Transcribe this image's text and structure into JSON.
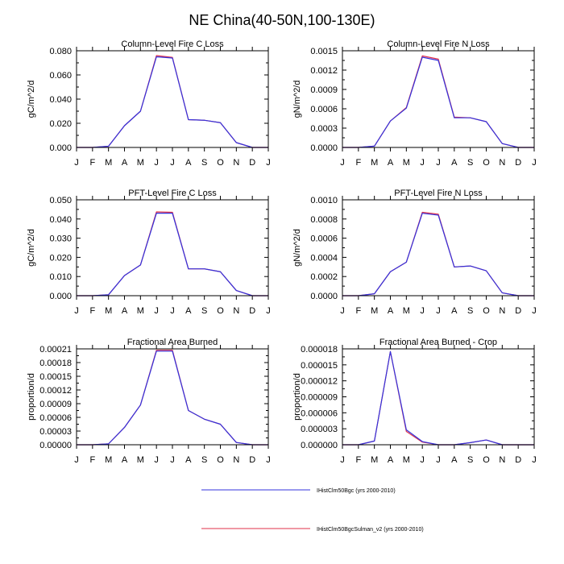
{
  "figure": {
    "title": "NE China(40-50N,100-130E)"
  },
  "legend": {
    "items": [
      {
        "label": "IHistClm50Bgc (yrs 2000-2010)",
        "color": "#3333dd"
      },
      {
        "label": "IHistClm50BgcSulman_v2 (yrs 2000-2010)",
        "color": "#e0304a"
      }
    ]
  },
  "chart_data": [
    {
      "type": "line",
      "title": "Column-Level Fire C Loss",
      "ylabel": "gC/m^2/d",
      "xlabel": "",
      "categories": [
        "J",
        "F",
        "M",
        "A",
        "M",
        "J",
        "J",
        "A",
        "S",
        "O",
        "N",
        "D",
        "J"
      ],
      "ylim": [
        0,
        0.08
      ],
      "yticks": [
        "0.000",
        "0.020",
        "0.040",
        "0.060",
        "0.080"
      ],
      "grid": false,
      "series": [
        {
          "name": "IHistClm50BgcSulman_v2 (yrs 2000-2010)",
          "color": "#e0304a",
          "values": [
            0.0,
            0.0,
            0.001,
            0.018,
            0.03,
            0.076,
            0.0745,
            0.023,
            0.0225,
            0.0205,
            0.004,
            0.0,
            0.0
          ]
        },
        {
          "name": "IHistClm50Bgc (yrs 2000-2010)",
          "color": "#3333dd",
          "values": [
            0.0,
            0.0,
            0.001,
            0.018,
            0.03,
            0.075,
            0.074,
            0.023,
            0.0225,
            0.0205,
            0.004,
            0.0,
            0.0
          ]
        }
      ]
    },
    {
      "type": "line",
      "title": "Column-Level Fire N Loss",
      "ylabel": "gN/m^2/d",
      "xlabel": "",
      "categories": [
        "J",
        "F",
        "M",
        "A",
        "M",
        "J",
        "J",
        "A",
        "S",
        "O",
        "N",
        "D",
        "J"
      ],
      "ylim": [
        0,
        0.0015
      ],
      "yticks": [
        "0.0000",
        "0.0003",
        "0.0006",
        "0.0009",
        "0.0012",
        "0.0015"
      ],
      "grid": false,
      "series": [
        {
          "name": "IHistClm50BgcSulman_v2 (yrs 2000-2010)",
          "color": "#e0304a",
          "values": [
            0.0,
            0.0,
            2e-05,
            0.00041,
            0.00062,
            0.00142,
            0.00137,
            0.00047,
            0.00046,
            0.0004,
            6e-05,
            0.0,
            0.0
          ]
        },
        {
          "name": "IHistClm50Bgc (yrs 2000-2010)",
          "color": "#3333dd",
          "values": [
            0.0,
            0.0,
            2e-05,
            0.00041,
            0.00061,
            0.0014,
            0.00135,
            0.00046,
            0.00046,
            0.0004,
            6e-05,
            0.0,
            0.0
          ]
        }
      ]
    },
    {
      "type": "line",
      "title": "PFT-Level Fire C Loss",
      "ylabel": "gC/m^2/d",
      "xlabel": "",
      "categories": [
        "J",
        "F",
        "M",
        "A",
        "M",
        "J",
        "J",
        "A",
        "S",
        "O",
        "N",
        "D",
        "J"
      ],
      "ylim": [
        0,
        0.05
      ],
      "yticks": [
        "0.000",
        "0.010",
        "0.020",
        "0.030",
        "0.040",
        "0.050"
      ],
      "grid": false,
      "series": [
        {
          "name": "IHistClm50BgcSulman_v2 (yrs 2000-2010)",
          "color": "#e0304a",
          "values": [
            0.0,
            0.0,
            0.0005,
            0.0105,
            0.016,
            0.0437,
            0.0435,
            0.014,
            0.014,
            0.0125,
            0.0027,
            0.0,
            0.0
          ]
        },
        {
          "name": "IHistClm50Bgc (yrs 2000-2010)",
          "color": "#3333dd",
          "values": [
            0.0,
            0.0,
            0.0005,
            0.0105,
            0.016,
            0.043,
            0.043,
            0.014,
            0.014,
            0.0125,
            0.0027,
            0.0,
            0.0
          ]
        }
      ]
    },
    {
      "type": "line",
      "title": "PFT-Level Fire N Loss",
      "ylabel": "gN/m^2/d",
      "xlabel": "",
      "categories": [
        "J",
        "F",
        "M",
        "A",
        "M",
        "J",
        "J",
        "A",
        "S",
        "O",
        "N",
        "D",
        "J"
      ],
      "ylim": [
        0,
        0.001
      ],
      "yticks": [
        "0.0000",
        "0.0002",
        "0.0004",
        "0.0006",
        "0.0008",
        "0.0010"
      ],
      "grid": false,
      "series": [
        {
          "name": "IHistClm50BgcSulman_v2 (yrs 2000-2010)",
          "color": "#e0304a",
          "values": [
            0.0,
            0.0,
            2e-05,
            0.00025,
            0.00035,
            0.00087,
            0.00085,
            0.0003,
            0.00031,
            0.00026,
            3e-05,
            0.0,
            0.0
          ]
        },
        {
          "name": "IHistClm50Bgc (yrs 2000-2010)",
          "color": "#3333dd",
          "values": [
            0.0,
            0.0,
            2e-05,
            0.00025,
            0.00035,
            0.00086,
            0.00084,
            0.0003,
            0.00031,
            0.00026,
            3e-05,
            0.0,
            0.0
          ]
        }
      ]
    },
    {
      "type": "line",
      "title": "Fractional Area Burned",
      "ylabel": "proportion/d",
      "xlabel": "",
      "categories": [
        "J",
        "F",
        "M",
        "A",
        "M",
        "J",
        "J",
        "A",
        "S",
        "O",
        "N",
        "D",
        "J"
      ],
      "ylim": [
        0,
        0.00021
      ],
      "yticks": [
        "0.00000",
        "0.00003",
        "0.00006",
        "0.00009",
        "0.00012",
        "0.00015",
        "0.00018",
        "0.00021"
      ],
      "grid": false,
      "series": [
        {
          "name": "IHistClm50BgcSulman_v2 (yrs 2000-2010)",
          "color": "#e0304a",
          "values": [
            0.0,
            0.0,
            2e-06,
            3.8e-05,
            8.7e-05,
            0.000207,
            0.000207,
            7.5e-05,
            5.6e-05,
            4.5e-05,
            5e-06,
            0.0,
            0.0
          ]
        },
        {
          "name": "IHistClm50Bgc (yrs 2000-2010)",
          "color": "#3333dd",
          "values": [
            0.0,
            0.0,
            2e-06,
            3.8e-05,
            8.7e-05,
            0.000205,
            0.000205,
            7.5e-05,
            5.6e-05,
            4.5e-05,
            5e-06,
            0.0,
            0.0
          ]
        }
      ]
    },
    {
      "type": "line",
      "title": "Fractional Area Burned - Crop",
      "ylabel": "proportion/d",
      "xlabel": "",
      "categories": [
        "J",
        "F",
        "M",
        "A",
        "M",
        "J",
        "J",
        "A",
        "S",
        "O",
        "N",
        "D",
        "J"
      ],
      "ylim": [
        0,
        1.8e-05
      ],
      "yticks": [
        "0.000000",
        "0.000003",
        "0.000006",
        "0.000009",
        "0.000012",
        "0.000015",
        "0.000018"
      ],
      "grid": false,
      "series": [
        {
          "name": "IHistClm50BgcSulman_v2 (yrs 2000-2010)",
          "color": "#e0304a",
          "values": [
            0.0,
            0.0,
            7e-07,
            1.75e-05,
            2.5e-06,
            5e-07,
            0.0,
            0.0,
            4e-07,
            9e-07,
            0.0,
            0.0,
            0.0
          ]
        },
        {
          "name": "IHistClm50Bgc (yrs 2000-2010)",
          "color": "#3333dd",
          "values": [
            0.0,
            0.0,
            7e-07,
            1.75e-05,
            2.8e-06,
            6e-07,
            0.0,
            0.0,
            4e-07,
            9e-07,
            0.0,
            0.0,
            0.0
          ]
        }
      ]
    }
  ]
}
